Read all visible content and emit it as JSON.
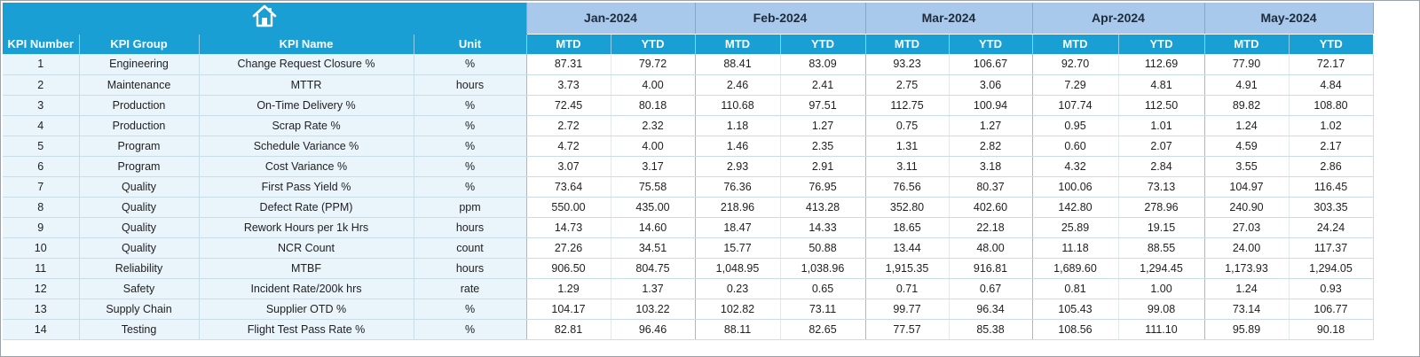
{
  "home": {
    "icon": "home-icon"
  },
  "colors": {
    "header_blue": "#1a9fd4",
    "month_band": "#a9c9ec",
    "info_cell_bg": "#e9f4fb"
  },
  "months": [
    "Jan-2024",
    "Feb-2024",
    "Mar-2024",
    "Apr-2024",
    "May-2024"
  ],
  "columns": {
    "kpi_number": "KPI Number",
    "kpi_group": "KPI Group",
    "kpi_name": "KPI Name",
    "unit": "Unit",
    "mtd": "MTD",
    "ytd": "YTD"
  },
  "rows": [
    {
      "num": "1",
      "group": "Engineering",
      "name": "Change Request Closure %",
      "unit": "%",
      "values": [
        "87.31",
        "79.72",
        "88.41",
        "83.09",
        "93.23",
        "106.67",
        "92.70",
        "112.69",
        "77.90",
        "72.17"
      ]
    },
    {
      "num": "2",
      "group": "Maintenance",
      "name": "MTTR",
      "unit": "hours",
      "values": [
        "3.73",
        "4.00",
        "2.46",
        "2.41",
        "2.75",
        "3.06",
        "7.29",
        "4.81",
        "4.91",
        "4.84"
      ]
    },
    {
      "num": "3",
      "group": "Production",
      "name": "On-Time Delivery %",
      "unit": "%",
      "values": [
        "72.45",
        "80.18",
        "110.68",
        "97.51",
        "112.75",
        "100.94",
        "107.74",
        "112.50",
        "89.82",
        "108.80"
      ]
    },
    {
      "num": "4",
      "group": "Production",
      "name": "Scrap Rate %",
      "unit": "%",
      "values": [
        "2.72",
        "2.32",
        "1.18",
        "1.27",
        "0.75",
        "1.27",
        "0.95",
        "1.01",
        "1.24",
        "1.02"
      ]
    },
    {
      "num": "5",
      "group": "Program",
      "name": "Schedule Variance %",
      "unit": "%",
      "values": [
        "4.72",
        "4.00",
        "1.46",
        "2.35",
        "1.31",
        "2.82",
        "0.60",
        "2.07",
        "4.59",
        "2.17"
      ]
    },
    {
      "num": "6",
      "group": "Program",
      "name": "Cost Variance %",
      "unit": "%",
      "values": [
        "3.07",
        "3.17",
        "2.93",
        "2.91",
        "3.11",
        "3.18",
        "4.32",
        "2.84",
        "3.55",
        "2.86"
      ]
    },
    {
      "num": "7",
      "group": "Quality",
      "name": "First Pass Yield %",
      "unit": "%",
      "values": [
        "73.64",
        "75.58",
        "76.36",
        "76.95",
        "76.56",
        "80.37",
        "100.06",
        "73.13",
        "104.97",
        "116.45"
      ]
    },
    {
      "num": "8",
      "group": "Quality",
      "name": "Defect Rate (PPM)",
      "unit": "ppm",
      "values": [
        "550.00",
        "435.00",
        "218.96",
        "413.28",
        "352.80",
        "402.60",
        "142.80",
        "278.96",
        "240.90",
        "303.35"
      ]
    },
    {
      "num": "9",
      "group": "Quality",
      "name": "Rework Hours per 1k Hrs",
      "unit": "hours",
      "values": [
        "14.73",
        "14.60",
        "18.47",
        "14.33",
        "18.65",
        "22.18",
        "25.89",
        "19.15",
        "27.03",
        "24.24"
      ]
    },
    {
      "num": "10",
      "group": "Quality",
      "name": "NCR Count",
      "unit": "count",
      "values": [
        "27.26",
        "34.51",
        "15.77",
        "50.88",
        "13.44",
        "48.00",
        "11.18",
        "88.55",
        "24.00",
        "117.37"
      ]
    },
    {
      "num": "11",
      "group": "Reliability",
      "name": "MTBF",
      "unit": "hours",
      "values": [
        "906.50",
        "804.75",
        "1,048.95",
        "1,038.96",
        "1,915.35",
        "916.81",
        "1,689.60",
        "1,294.45",
        "1,173.93",
        "1,294.05"
      ]
    },
    {
      "num": "12",
      "group": "Safety",
      "name": "Incident Rate/200k hrs",
      "unit": "rate",
      "values": [
        "1.29",
        "1.37",
        "0.23",
        "0.65",
        "0.71",
        "0.67",
        "0.81",
        "1.00",
        "1.24",
        "0.93"
      ]
    },
    {
      "num": "13",
      "group": "Supply Chain",
      "name": "Supplier OTD %",
      "unit": "%",
      "values": [
        "104.17",
        "103.22",
        "102.82",
        "73.11",
        "99.77",
        "96.34",
        "105.43",
        "99.08",
        "73.14",
        "106.77"
      ]
    },
    {
      "num": "14",
      "group": "Testing",
      "name": "Flight Test Pass Rate %",
      "unit": "%",
      "values": [
        "82.81",
        "96.46",
        "88.11",
        "82.65",
        "77.57",
        "85.38",
        "108.56",
        "111.10",
        "95.89",
        "90.18"
      ]
    }
  ]
}
